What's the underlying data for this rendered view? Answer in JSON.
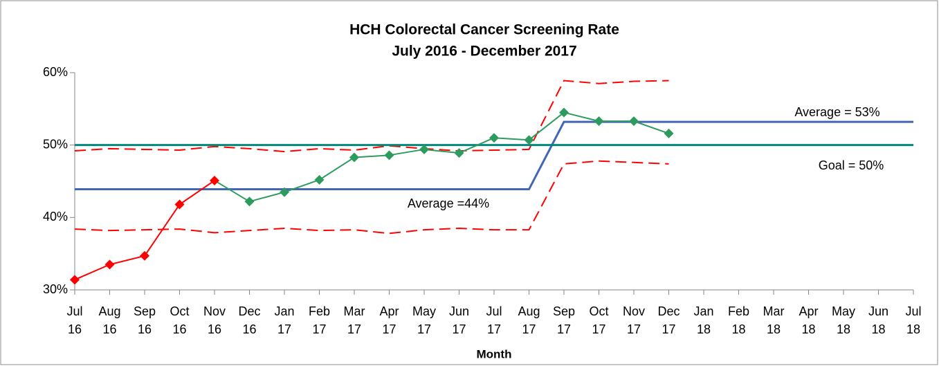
{
  "chart_data": {
    "type": "line",
    "title": [
      "HCH Colorectal Cancer Screening Rate",
      "July 2016 - December 2017"
    ],
    "xlabel": "Month",
    "categories": [
      [
        "Jul",
        "16"
      ],
      [
        "Aug",
        "16"
      ],
      [
        "Sep",
        "16"
      ],
      [
        "Oct",
        "16"
      ],
      [
        "Nov",
        "16"
      ],
      [
        "Dec",
        "16"
      ],
      [
        "Jan",
        "17"
      ],
      [
        "Feb",
        "17"
      ],
      [
        "Mar",
        "17"
      ],
      [
        "Apr",
        "17"
      ],
      [
        "May",
        "17"
      ],
      [
        "Jun",
        "17"
      ],
      [
        "Jul",
        "17"
      ],
      [
        "Aug",
        "17"
      ],
      [
        "Sep",
        "17"
      ],
      [
        "Oct",
        "17"
      ],
      [
        "Nov",
        "17"
      ],
      [
        "Dec",
        "17"
      ],
      [
        "Jan",
        "18"
      ],
      [
        "Feb",
        "18"
      ],
      [
        "Mar",
        "18"
      ],
      [
        "Apr",
        "18"
      ],
      [
        "May",
        "18"
      ],
      [
        "Jun",
        "18"
      ],
      [
        "Jul",
        "18"
      ]
    ],
    "ylim": [
      30,
      60
    ],
    "yticks": [
      {
        "value": 30,
        "label": "30%"
      },
      {
        "value": 40,
        "label": "40%"
      },
      {
        "value": 50,
        "label": "50%"
      },
      {
        "value": 60,
        "label": "60%"
      }
    ],
    "series": [
      {
        "color": "#ff0000",
        "style": "dashed",
        "width": 2,
        "values": [
          49.2,
          49.5,
          49.4,
          49.3,
          49.8,
          49.5,
          49.1,
          49.5,
          49.3,
          49.9,
          49.5,
          49.2,
          49.3,
          49.4,
          58.9,
          58.5,
          58.8,
          58.9,
          null,
          null,
          null,
          null,
          null,
          null,
          null
        ]
      },
      {
        "color": "#ff0000",
        "style": "dashed",
        "width": 2,
        "values": [
          38.4,
          38.2,
          38.3,
          38.4,
          37.9,
          38.2,
          38.5,
          38.2,
          38.3,
          37.8,
          38.3,
          38.5,
          38.3,
          38.3,
          47.4,
          47.8,
          47.6,
          47.4,
          null,
          null,
          null,
          null,
          null,
          null,
          null
        ]
      },
      {
        "color": "#4066b4",
        "style": "solid",
        "width": 3,
        "values": [
          43.9,
          43.9,
          43.9,
          43.9,
          43.9,
          43.9,
          43.9,
          43.9,
          43.9,
          43.9,
          43.9,
          43.9,
          43.9,
          43.9,
          53.2,
          53.2,
          53.2,
          53.2,
          53.2,
          53.2,
          53.2,
          53.2,
          53.2,
          53.2,
          53.2
        ]
      },
      {
        "color": "#00897b",
        "style": "solid",
        "width": 3,
        "values": [
          50,
          50,
          50,
          50,
          50,
          50,
          50,
          50,
          50,
          50,
          50,
          50,
          50,
          50,
          50,
          50,
          50,
          50,
          50,
          50,
          50,
          50,
          50,
          50,
          50
        ]
      },
      {
        "color": "#2e9b5e",
        "style": "solid",
        "width": 2,
        "marker": "diamond",
        "point_colors": [
          "#ff0000",
          "#ff0000",
          "#ff0000",
          "#ff0000",
          "#ff0000",
          "#2e9b5e",
          "#2e9b5e",
          "#2e9b5e",
          "#2e9b5e",
          "#2e9b5e",
          "#2e9b5e",
          "#2e9b5e",
          "#2e9b5e",
          "#2e9b5e",
          "#2e9b5e",
          "#2e9b5e",
          "#2e9b5e",
          "#2e9b5e",
          null,
          null,
          null,
          null,
          null,
          null,
          null
        ],
        "values": [
          31.4,
          33.5,
          34.7,
          41.8,
          45.1,
          42.2,
          43.5,
          45.2,
          48.3,
          48.6,
          49.4,
          48.9,
          51.0,
          50.7,
          54.5,
          53.3,
          53.3,
          51.6,
          null,
          null,
          null,
          null,
          null,
          null,
          null
        ]
      }
    ],
    "annotations": [
      "Average = 53%",
      "Goal = 50%",
      "Average =44%"
    ]
  }
}
